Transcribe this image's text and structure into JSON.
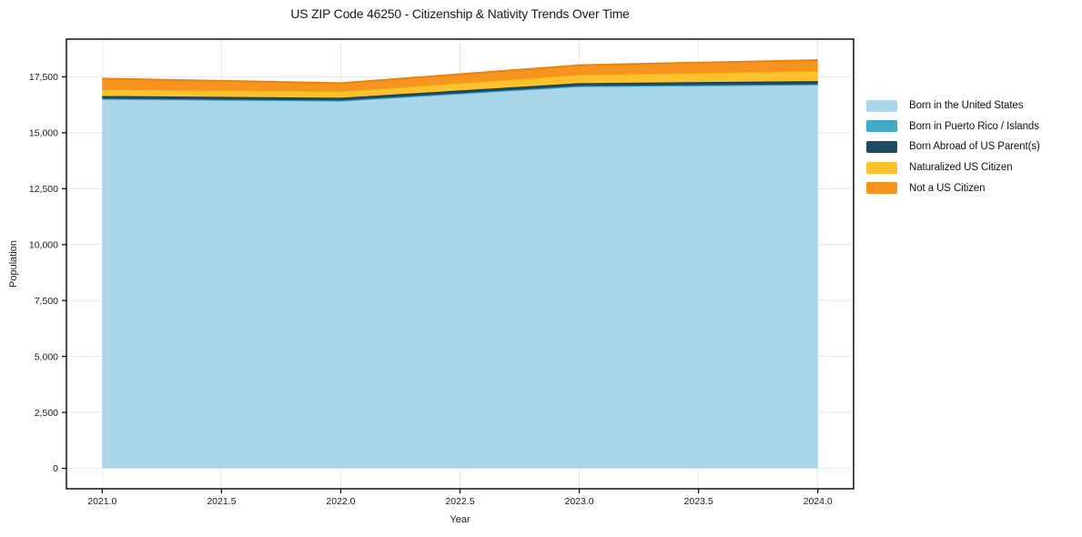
{
  "title": "US ZIP Code 46250 - Citizenship & Nativity Trends Over Time",
  "chart_data": {
    "type": "area",
    "stacked": true,
    "title": "US ZIP Code 46250 - Citizenship & Nativity Trends Over Time",
    "xlabel": "Year",
    "ylabel": "Population",
    "x": [
      2021,
      2022,
      2023,
      2024
    ],
    "series": [
      {
        "name": "Born in the United States",
        "color": "#a9d6e9",
        "edge": "#93c8df",
        "values": [
          16500,
          16420,
          17060,
          17140
        ]
      },
      {
        "name": "Born in Puerto Rico / Islands",
        "color": "#41aac6",
        "edge": "#2f97b8",
        "values": [
          25,
          25,
          30,
          30
        ]
      },
      {
        "name": "Born Abroad of US Parent(s)",
        "color": "#1f4a63",
        "edge": "#173c52",
        "values": [
          120,
          120,
          130,
          140
        ]
      },
      {
        "name": "Naturalized US Citizen",
        "color": "#fcc22d",
        "edge": "#f2b10e",
        "values": [
          285,
          285,
          370,
          450
        ]
      },
      {
        "name": "Not a US Citizen",
        "color": "#f79420",
        "edge": "#e8830f",
        "values": [
          490,
          370,
          430,
          490
        ]
      }
    ],
    "totals": [
      17420,
      17220,
      18020,
      18250
    ],
    "xlim": [
      2020.85,
      2024.15
    ],
    "ylim": [
      -914,
      19186
    ],
    "xticks": [
      2021.0,
      2021.5,
      2022.0,
      2022.5,
      2023.0,
      2023.5,
      2024.0
    ],
    "xticklabels": [
      "2021.0",
      "2021.5",
      "2022.0",
      "2022.5",
      "2023.0",
      "2023.5",
      "2024.0"
    ],
    "yticks": [
      0,
      2500,
      5000,
      7500,
      10000,
      12500,
      15000,
      17500
    ],
    "yticklabels": [
      "0",
      "2,500",
      "5,000",
      "7,500",
      "10,000",
      "12,500",
      "15,000",
      "17,500"
    ],
    "grid": true,
    "grid_color": "#e9e9e9",
    "spine_color": "#000000",
    "legend_position": "right-outside"
  }
}
